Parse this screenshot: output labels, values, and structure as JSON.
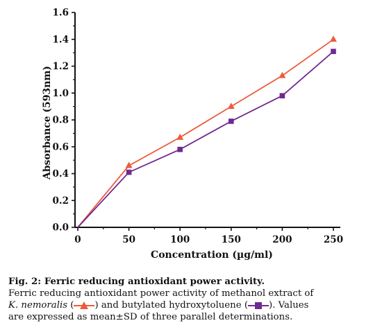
{
  "chart_data": {
    "type": "line",
    "x": [
      0,
      50,
      100,
      150,
      200,
      250
    ],
    "xlabel": "Concentration (µg/ml)",
    "ylabel": "Absorbance (593nm)",
    "xlim": [
      0,
      260
    ],
    "ylim": [
      0.0,
      1.6
    ],
    "xticks": [
      "0",
      "50",
      "100",
      "150",
      "200",
      "250"
    ],
    "yticks": [
      "0.0",
      "0.2",
      "0.4",
      "0.6",
      "0.8",
      "1.0",
      "1.2",
      "1.4",
      "1.6"
    ],
    "grid": false,
    "series": [
      {
        "marker": "triangle",
        "color": "#ef5a3c",
        "values": [
          0.0,
          0.46,
          0.67,
          0.9,
          1.13,
          1.4
        ]
      },
      {
        "marker": "square",
        "color": "#6f2a8f",
        "values": [
          0.0,
          0.41,
          0.58,
          0.79,
          0.98,
          1.31
        ]
      }
    ]
  },
  "caption": {
    "title": "Fig. 2: Ferric reducing antioxidant power activity.",
    "body_part1": "Ferric reducing antioxidant power activity of methanol extract of",
    "species": "K. nemoralis",
    "open_paren_1": " (",
    "close_paren_1": ") and butylated hydroxytoluene (",
    "close_paren_2": "). Values",
    "body_part2": "are expressed as mean±SD of three parallel determinations."
  }
}
